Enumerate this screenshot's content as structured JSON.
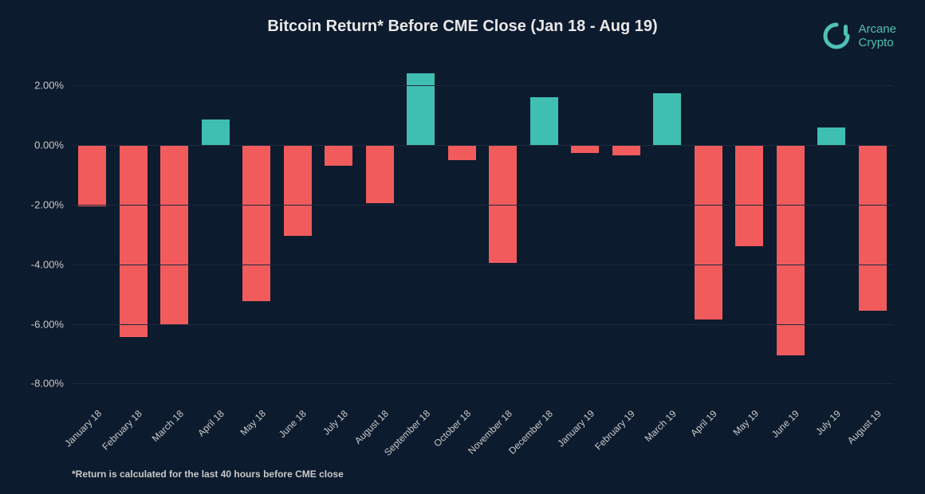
{
  "chart": {
    "type": "bar",
    "title": "Bitcoin Return* Before CME Close (Jan 18 - Aug 19)",
    "title_fontsize": 20,
    "title_color": "#e8e8e8",
    "background_color": "#0d1b2e",
    "grid_color": "#1c2a40",
    "positive_color": "#3fbfb1",
    "negative_color": "#f15b5b",
    "axis_label_color": "#c9c9c9",
    "axis_fontsize": 13,
    "xlabel_fontsize": 12,
    "ylim": [
      -8.5,
      3.0
    ],
    "yticks": [
      2.0,
      0.0,
      -2.0,
      -4.0,
      -6.0,
      -8.0
    ],
    "ytick_labels": [
      "2.00%",
      "0.00%",
      "-2.00%",
      "-4.00%",
      "-6.00%",
      "-8.00%"
    ],
    "bar_width_ratio": 0.68,
    "categories": [
      "January 18",
      "February 18",
      "March 18",
      "April 18",
      "May 18",
      "June 18",
      "July 18",
      "August 18",
      "September 18",
      "October 18",
      "November 18",
      "December 18",
      "January 19",
      "February 19",
      "March 19",
      "April 19",
      "May 19",
      "June 19",
      "July 19",
      "August 19"
    ],
    "values": [
      -2.05,
      -6.45,
      -6.05,
      0.85,
      -5.25,
      -3.05,
      -0.7,
      -1.95,
      2.4,
      -0.5,
      -3.95,
      1.6,
      -0.25,
      -0.35,
      1.75,
      -5.85,
      -3.4,
      -7.05,
      0.6,
      -5.55
    ],
    "footnote": "*Return is calculated for the last 40 hours before CME close"
  },
  "logo": {
    "brand_line1": "Arcane",
    "brand_line2": "Crypto",
    "icon_color": "#4fc1b6",
    "text_color": "#4fc1b6"
  }
}
